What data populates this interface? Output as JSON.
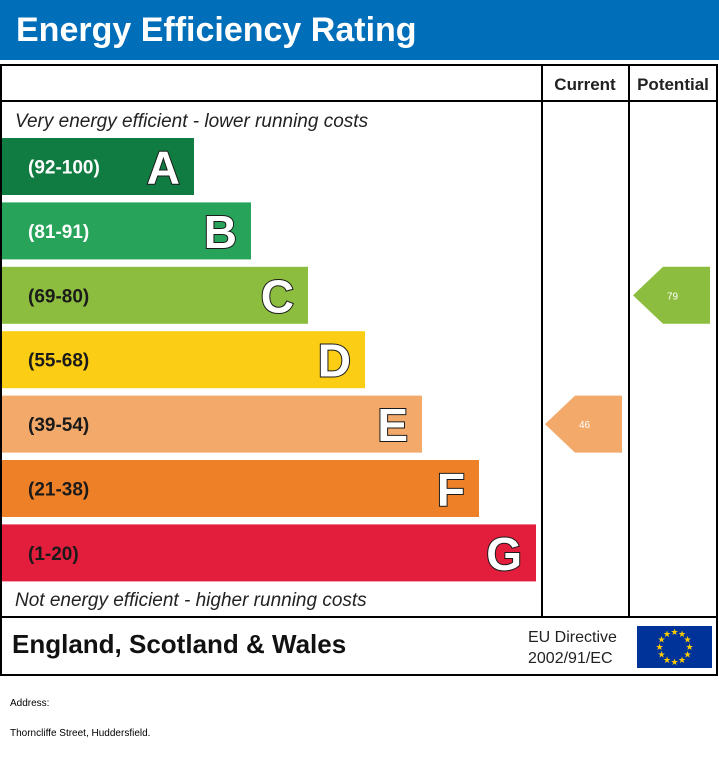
{
  "header": {
    "title": "Energy Efficiency Rating"
  },
  "columns": {
    "current": "Current",
    "potential": "Potential"
  },
  "captions": {
    "top": "Very energy efficient - lower running costs",
    "bottom": "Not energy efficient - higher running costs"
  },
  "footer": {
    "region": "England, Scotland & Wales",
    "directive_line1": "EU Directive",
    "directive_line2": "2002/91/EC"
  },
  "address": {
    "label": "Address:",
    "value": "Thorncliffe Street, Huddersfield."
  },
  "colors": {
    "header": "#006eb9",
    "eu_flag": "#003399",
    "eu_stars": "#ffcc00"
  },
  "chart_data": {
    "type": "bar",
    "bands": [
      {
        "range": "(92-100)",
        "letter": "A",
        "color": "#107c41"
      },
      {
        "range": "(81-91)",
        "letter": "B",
        "color": "#27a459"
      },
      {
        "range": "(69-80)",
        "letter": "C",
        "color": "#8dbd3f"
      },
      {
        "range": "(55-68)",
        "letter": "D",
        "color": "#fbcd14"
      },
      {
        "range": "(39-54)",
        "letter": "E",
        "color": "#f2a96a"
      },
      {
        "range": "(21-38)",
        "letter": "F",
        "color": "#ee8127"
      },
      {
        "range": "(1-20)",
        "letter": "G",
        "color": "#e31d3c"
      }
    ],
    "current": {
      "value": 46,
      "band": "E",
      "color": "#f2a96a"
    },
    "potential": {
      "value": 79,
      "band": "C",
      "color": "#8dbd3f"
    }
  }
}
